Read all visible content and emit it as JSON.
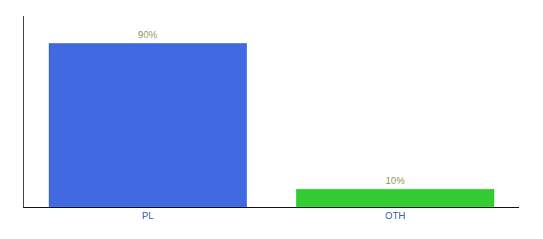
{
  "chart_data": {
    "type": "bar",
    "categories": [
      "PL",
      "OTH"
    ],
    "values": [
      90,
      10
    ],
    "value_labels": [
      "90%",
      "10%"
    ],
    "colors": [
      "#4169E1",
      "#33CC33"
    ],
    "ylim": [
      0,
      105
    ],
    "data_labels": true,
    "tick_labels": "x",
    "grid": false
  }
}
